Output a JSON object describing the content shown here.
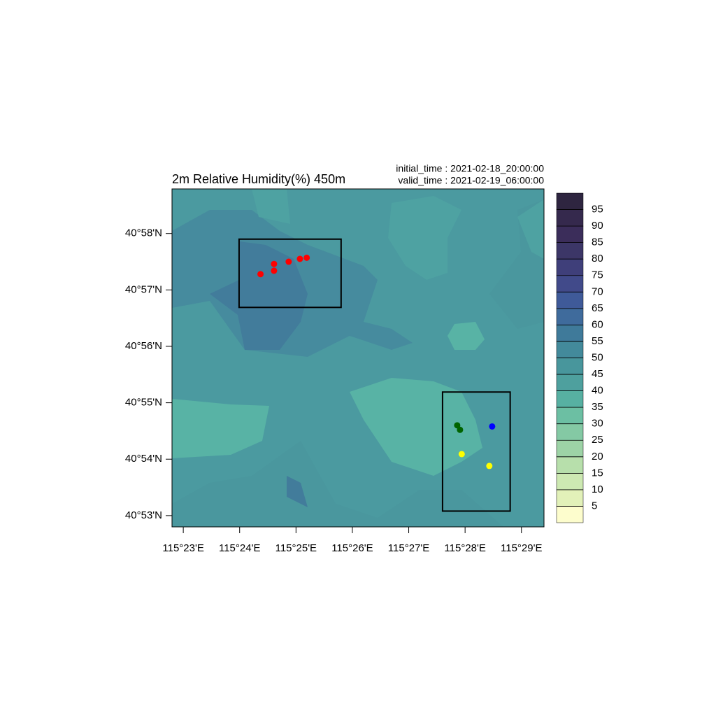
{
  "map": {
    "title": "2m Relative Humidity(%) 450m",
    "info": [
      "initial_time :  2021-02-18_20:00:00",
      "valid_time  :  2021-02-19_06:00:00"
    ],
    "xlim": [
      22.8,
      29.4
    ],
    "ylim": [
      52.8,
      58.79
    ],
    "xticks": [
      {
        "value": 23,
        "label": "115°23'E"
      },
      {
        "value": 24,
        "label": "115°24'E"
      },
      {
        "value": 25,
        "label": "115°25'E"
      },
      {
        "value": 26,
        "label": "115°26'E"
      },
      {
        "value": 27,
        "label": "115°27'E"
      },
      {
        "value": 28,
        "label": "115°28'E"
      },
      {
        "value": 29,
        "label": "115°29'E"
      }
    ],
    "yticks": [
      {
        "value": 53,
        "label": "40°53'N"
      },
      {
        "value": 54,
        "label": "40°54'N"
      },
      {
        "value": 55,
        "label": "40°55'N"
      },
      {
        "value": 56,
        "label": "40°56'N"
      },
      {
        "value": 57,
        "label": "40°57'N"
      },
      {
        "value": 58,
        "label": "40°58'N"
      }
    ],
    "boxes": [
      {
        "lon": [
          23.99,
          25.8
        ],
        "lat": [
          56.69,
          57.9
        ]
      },
      {
        "lon": [
          27.6,
          28.8
        ],
        "lat": [
          53.08,
          55.19
        ]
      }
    ],
    "points": [
      {
        "color": "#ff0000",
        "lon": [
          24.37,
          24.61,
          24.61,
          24.87,
          25.07,
          25.19
        ],
        "lat": [
          57.28,
          57.46,
          57.34,
          57.5,
          57.55,
          57.57
        ]
      },
      {
        "color": "#006400",
        "lon": [
          27.86,
          27.91
        ],
        "lat": [
          54.6,
          54.52
        ]
      },
      {
        "color": "#0000ff",
        "lon": [
          28.48
        ],
        "lat": [
          54.58
        ]
      },
      {
        "color": "#ffff00",
        "lon": [
          27.94,
          28.43
        ],
        "lat": [
          54.09,
          53.88
        ]
      }
    ],
    "colorbar": {
      "levels": [
        5,
        10,
        15,
        20,
        25,
        30,
        35,
        40,
        45,
        50,
        55,
        60,
        65,
        70,
        75,
        80,
        85,
        90,
        95
      ],
      "colors": [
        "#fdfdcd",
        "#e2f1b9",
        "#cde9b2",
        "#b7dfab",
        "#9dd3a6",
        "#84c9a4",
        "#6cbfa3",
        "#57b0a2",
        "#4ea09e",
        "#48969c",
        "#438a9b",
        "#3f7a9a",
        "#3f6b9c",
        "#3f5a99",
        "#414a8a",
        "#3f3f7a",
        "#3c3667",
        "#3b2d5a",
        "#35294d",
        "#2e2540"
      ]
    }
  }
}
